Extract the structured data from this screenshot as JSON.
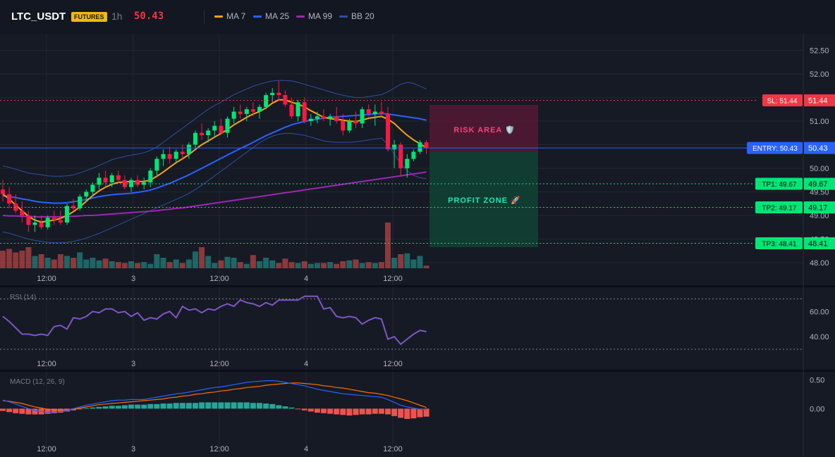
{
  "header": {
    "symbol": "LTC_USDT",
    "badge": "FUTURES",
    "timeframe": "1h",
    "price": "50.43",
    "legend": [
      {
        "label": "MA 7",
        "color": "#f7a21b"
      },
      {
        "label": "MA 25",
        "color": "#2962ff"
      },
      {
        "label": "MA 99",
        "color": "#9c27b0"
      },
      {
        "label": "BB 20",
        "color": "#2f4f9e"
      }
    ]
  },
  "colors": {
    "up": "#26a69a",
    "down": "#ef5350",
    "bull_candle": "#00e676",
    "bear_candle": "#ff1744",
    "ma7": "#f7a21b",
    "ma25": "#2962ff",
    "ma99": "#9c27b0",
    "bb": "#2f4f9e",
    "rsi": "#7e57c2",
    "macd": "#2962ff",
    "signal": "#ff6d00"
  },
  "time_axis": [
    "12:00",
    "3",
    "12:00",
    "4",
    "12:00"
  ],
  "price_axis": [
    "52.50",
    "52.00",
    "51.50",
    "51.00",
    "50.50",
    "50.00",
    "49.50",
    "49.00",
    "48.50",
    "48.00"
  ],
  "trade": {
    "sl": {
      "label": "SL: 51.44",
      "value": "51.44",
      "price": 51.44
    },
    "entry": {
      "label": "ENTRY: 50.43",
      "value": "50.43",
      "price": 50.43
    },
    "tp1": {
      "label": "TP1: 49.67",
      "value": "49.67",
      "price": 49.67
    },
    "tp2": {
      "label": "TP2: 49.17",
      "value": "49.17",
      "price": 49.17
    },
    "tp3": {
      "label": "TP3: 48.41",
      "value": "48.41",
      "price": 48.41
    },
    "risk_text": "RISK AREA 🛡️",
    "profit_text": "PROFIT ZONE 🚀"
  },
  "rsi": {
    "label": "RSI (14)",
    "axis": [
      "60.00",
      "40.00"
    ],
    "levels": [
      70,
      30
    ]
  },
  "macd": {
    "label": "MACD (12, 26, 9)",
    "axis": [
      "0.50",
      "0.00"
    ]
  },
  "chart_data": [
    {
      "type": "candlestick",
      "title": "LTC_USDT 1h",
      "ylim": [
        47.85,
        52.85
      ],
      "x_ticks": [
        "12:00",
        "3",
        "12:00",
        "4",
        "12:00"
      ],
      "ohlc": [
        [
          49.55,
          49.75,
          49.3,
          49.45
        ],
        [
          49.45,
          49.6,
          49.15,
          49.25
        ],
        [
          49.25,
          49.45,
          49.05,
          49.1
        ],
        [
          49.1,
          49.3,
          48.85,
          49.0
        ],
        [
          49.0,
          49.1,
          48.65,
          48.8
        ],
        [
          48.8,
          49.0,
          48.65,
          48.85
        ],
        [
          48.85,
          49.0,
          48.7,
          48.75
        ],
        [
          48.75,
          49.0,
          48.7,
          48.95
        ],
        [
          48.95,
          49.1,
          48.8,
          48.9
        ],
        [
          48.9,
          49.1,
          48.8,
          48.85
        ],
        [
          48.85,
          49.25,
          48.8,
          49.2
        ],
        [
          49.2,
          49.35,
          49.1,
          49.15
        ],
        [
          49.15,
          49.45,
          49.1,
          49.4
        ],
        [
          49.4,
          49.55,
          49.3,
          49.5
        ],
        [
          49.5,
          49.7,
          49.4,
          49.65
        ],
        [
          49.65,
          49.9,
          49.55,
          49.8
        ],
        [
          49.8,
          49.95,
          49.6,
          49.7
        ],
        [
          49.7,
          49.9,
          49.6,
          49.85
        ],
        [
          49.85,
          49.95,
          49.7,
          49.75
        ],
        [
          49.75,
          49.85,
          49.55,
          49.6
        ],
        [
          49.6,
          49.8,
          49.5,
          49.75
        ],
        [
          49.75,
          49.85,
          49.6,
          49.65
        ],
        [
          49.65,
          49.8,
          49.55,
          49.7
        ],
        [
          49.7,
          50.0,
          49.6,
          49.95
        ],
        [
          49.95,
          50.25,
          49.85,
          50.2
        ],
        [
          50.2,
          50.4,
          50.05,
          50.3
        ],
        [
          50.3,
          50.45,
          50.1,
          50.2
        ],
        [
          50.2,
          50.4,
          50.1,
          50.35
        ],
        [
          50.35,
          50.5,
          50.2,
          50.3
        ],
        [
          50.3,
          50.55,
          50.2,
          50.5
        ],
        [
          50.5,
          50.8,
          50.4,
          50.75
        ],
        [
          50.75,
          50.95,
          50.6,
          50.7
        ],
        [
          50.7,
          50.85,
          50.55,
          50.8
        ],
        [
          50.8,
          51.0,
          50.65,
          50.9
        ],
        [
          50.9,
          51.05,
          50.7,
          50.75
        ],
        [
          50.75,
          51.1,
          50.65,
          51.05
        ],
        [
          51.05,
          51.3,
          50.95,
          51.2
        ],
        [
          51.2,
          51.35,
          51.05,
          51.15
        ],
        [
          51.15,
          51.3,
          51.0,
          51.25
        ],
        [
          51.25,
          51.4,
          51.1,
          51.2
        ],
        [
          51.2,
          51.35,
          51.05,
          51.3
        ],
        [
          51.3,
          51.6,
          51.25,
          51.55
        ],
        [
          51.55,
          51.7,
          51.4,
          51.6
        ],
        [
          51.6,
          51.85,
          51.45,
          51.55
        ],
        [
          51.55,
          51.65,
          51.3,
          51.35
        ],
        [
          51.35,
          51.5,
          51.05,
          51.1
        ],
        [
          51.1,
          51.45,
          51.0,
          51.4
        ],
        [
          51.4,
          51.5,
          50.95,
          51.0
        ],
        [
          51.0,
          51.15,
          50.9,
          51.05
        ],
        [
          51.05,
          51.2,
          50.95,
          51.1
        ],
        [
          51.1,
          51.25,
          51.0,
          51.05
        ],
        [
          51.05,
          51.15,
          50.9,
          51.1
        ],
        [
          51.1,
          51.3,
          50.95,
          51.0
        ],
        [
          51.0,
          51.15,
          50.7,
          50.8
        ],
        [
          50.8,
          51.05,
          50.75,
          51.0
        ],
        [
          51.0,
          51.2,
          50.85,
          50.95
        ],
        [
          50.95,
          51.3,
          50.85,
          51.25
        ],
        [
          51.25,
          51.35,
          51.1,
          51.15
        ],
        [
          51.15,
          51.35,
          50.9,
          51.2
        ],
        [
          51.2,
          51.4,
          51.1,
          51.15
        ],
        [
          51.15,
          51.3,
          50.35,
          50.4
        ],
        [
          50.4,
          50.6,
          50.0,
          50.5
        ],
        [
          50.5,
          50.55,
          49.85,
          50.0
        ],
        [
          50.0,
          50.3,
          49.8,
          50.2
        ],
        [
          50.2,
          50.4,
          50.15,
          50.35
        ],
        [
          50.35,
          50.6,
          50.3,
          50.55
        ],
        [
          50.55,
          50.6,
          50.3,
          50.43
        ]
      ],
      "volume": [
        2.0,
        2.2,
        1.8,
        2.0,
        2.4,
        1.4,
        1.6,
        1.2,
        1.0,
        1.6,
        1.4,
        1.2,
        1.8,
        1.0,
        1.2,
        0.9,
        1.1,
        0.8,
        0.7,
        0.6,
        0.8,
        0.6,
        0.7,
        0.5,
        1.6,
        1.2,
        0.7,
        1.0,
        0.6,
        1.0,
        1.9,
        2.4,
        1.4,
        0.6,
        0.9,
        1.3,
        1.2,
        0.7,
        0.5,
        1.5,
        0.8,
        1.2,
        0.9,
        0.6,
        1.1,
        0.7,
        0.6,
        0.8,
        0.5,
        0.6,
        0.6,
        0.7,
        0.5,
        0.8,
        0.9,
        1.0,
        0.6,
        0.7,
        0.6,
        0.7,
        5.2,
        1.2,
        1.6,
        1.7,
        1.0,
        1.4,
        0.3
      ],
      "ma7": [
        49.45,
        49.35,
        49.22,
        49.1,
        48.98,
        48.9,
        48.86,
        48.88,
        48.9,
        48.94,
        49.0,
        49.08,
        49.18,
        49.3,
        49.42,
        49.52,
        49.6,
        49.66,
        49.7,
        49.71,
        49.72,
        49.72,
        49.72,
        49.75,
        49.83,
        49.92,
        50.02,
        50.12,
        50.2,
        50.29,
        50.4,
        50.5,
        50.58,
        50.66,
        50.74,
        50.82,
        50.92,
        51.0,
        51.08,
        51.15,
        51.2,
        51.28,
        51.38,
        51.45,
        51.45,
        51.4,
        51.36,
        51.3,
        51.22,
        51.15,
        51.08,
        51.05,
        51.04,
        51.02,
        51.0,
        50.99,
        51.02,
        51.06,
        51.08,
        51.1,
        51.04,
        50.95,
        50.82,
        50.7,
        50.6,
        50.52,
        50.43
      ],
      "ma25": [
        49.42,
        49.4,
        49.38,
        49.35,
        49.33,
        49.3,
        49.28,
        49.27,
        49.26,
        49.26,
        49.27,
        49.29,
        49.31,
        49.34,
        49.37,
        49.4,
        49.42,
        49.44,
        49.45,
        49.46,
        49.47,
        49.49,
        49.51,
        49.54,
        49.58,
        49.63,
        49.68,
        49.74,
        49.8,
        49.86,
        49.93,
        50.0,
        50.07,
        50.14,
        50.21,
        50.28,
        50.35,
        50.42,
        50.48,
        50.55,
        50.62,
        50.69,
        50.75,
        50.81,
        50.87,
        50.92,
        50.96,
        50.99,
        51.02,
        51.04,
        51.06,
        51.08,
        51.09,
        51.1,
        51.11,
        51.12,
        51.13,
        51.14,
        51.15,
        51.16,
        51.15,
        51.13,
        51.11,
        51.09,
        51.07,
        51.05,
        51.02
      ],
      "ma99": [
        49.0,
        48.99,
        48.99,
        48.98,
        48.98,
        48.97,
        48.97,
        48.97,
        48.97,
        48.97,
        48.98,
        48.98,
        48.99,
        49.0,
        49.0,
        49.01,
        49.02,
        49.03,
        49.04,
        49.05,
        49.06,
        49.07,
        49.08,
        49.09,
        49.1,
        49.12,
        49.13,
        49.15,
        49.16,
        49.18,
        49.2,
        49.22,
        49.24,
        49.26,
        49.28,
        49.3,
        49.32,
        49.34,
        49.36,
        49.38,
        49.4,
        49.42,
        49.44,
        49.46,
        49.48,
        49.5,
        49.52,
        49.54,
        49.56,
        49.58,
        49.6,
        49.62,
        49.64,
        49.66,
        49.68,
        49.7,
        49.72,
        49.74,
        49.76,
        49.78,
        49.8,
        49.82,
        49.84,
        49.86,
        49.88,
        49.9,
        49.92
      ],
      "bb_upper": [
        50.05,
        50.02,
        49.98,
        49.94,
        49.9,
        49.88,
        49.86,
        49.84,
        49.83,
        49.83,
        49.84,
        49.86,
        49.9,
        49.95,
        50.0,
        50.06,
        50.12,
        50.18,
        50.22,
        50.25,
        50.28,
        50.3,
        50.33,
        50.38,
        50.45,
        50.55,
        50.65,
        50.75,
        50.85,
        50.95,
        51.05,
        51.15,
        51.25,
        51.33,
        51.4,
        51.48,
        51.56,
        51.62,
        51.68,
        51.74,
        51.78,
        51.82,
        51.85,
        51.86,
        51.86,
        51.85,
        51.82,
        51.78,
        51.74,
        51.7,
        51.66,
        51.62,
        51.58,
        51.55,
        51.52,
        51.5,
        51.5,
        51.52,
        51.54,
        51.56,
        51.62,
        51.7,
        51.78,
        51.82,
        51.8,
        51.74,
        51.68
      ],
      "bb_lower": [
        48.65,
        48.62,
        48.58,
        48.54,
        48.5,
        48.47,
        48.45,
        48.43,
        48.42,
        48.42,
        48.43,
        48.45,
        48.48,
        48.52,
        48.57,
        48.62,
        48.68,
        48.74,
        48.8,
        48.86,
        48.92,
        48.98,
        49.04,
        49.1,
        49.16,
        49.22,
        49.28,
        49.34,
        49.4,
        49.47,
        49.55,
        49.64,
        49.74,
        49.84,
        49.94,
        50.04,
        50.14,
        50.24,
        50.34,
        50.44,
        50.54,
        50.62,
        50.68,
        50.72,
        50.74,
        50.74,
        50.72,
        50.7,
        50.66,
        50.62,
        50.58,
        50.56,
        50.55,
        50.55,
        50.55,
        50.56,
        50.58,
        50.6,
        50.62,
        50.64,
        50.5,
        50.3,
        50.1,
        49.95,
        49.85,
        49.8,
        49.78
      ]
    },
    {
      "type": "line",
      "title": "RSI (14)",
      "ylim": [
        25,
        78
      ],
      "y_ticks": [
        60,
        40
      ],
      "values": [
        56,
        52,
        47,
        42,
        42,
        41,
        42,
        41,
        48,
        49,
        46,
        55,
        54,
        56,
        60,
        59,
        62,
        62,
        59,
        60,
        56,
        59,
        53,
        55,
        54,
        58,
        60,
        55,
        64,
        61,
        62,
        59,
        62,
        61,
        64,
        66,
        64,
        69,
        67,
        66,
        64,
        67,
        65,
        69,
        69,
        69,
        69,
        72,
        72,
        72,
        62,
        63,
        56,
        55,
        56,
        55,
        50,
        53,
        55,
        54,
        38,
        40,
        34,
        38,
        42,
        45,
        44
      ]
    },
    {
      "type": "bar",
      "title": "MACD (12, 26, 9)",
      "ylim": [
        -0.55,
        0.62
      ],
      "y_ticks": [
        0.5,
        0.0
      ],
      "histogram": [
        -0.04,
        -0.06,
        -0.08,
        -0.09,
        -0.1,
        -0.1,
        -0.1,
        -0.09,
        -0.08,
        -0.07,
        -0.05,
        -0.03,
        -0.01,
        0.01,
        0.02,
        0.03,
        0.04,
        0.05,
        0.05,
        0.06,
        0.07,
        0.07,
        0.07,
        0.08,
        0.08,
        0.09,
        0.09,
        0.1,
        0.1,
        0.1,
        0.1,
        0.11,
        0.11,
        0.11,
        0.11,
        0.11,
        0.11,
        0.11,
        0.11,
        0.1,
        0.1,
        0.09,
        0.08,
        0.06,
        0.04,
        0.02,
        -0.01,
        -0.03,
        -0.05,
        -0.07,
        -0.08,
        -0.09,
        -0.1,
        -0.11,
        -0.12,
        -0.11,
        -0.1,
        -0.1,
        -0.09,
        -0.09,
        -0.1,
        -0.13,
        -0.16,
        -0.18,
        -0.17,
        -0.15,
        -0.14
      ],
      "macd_line": [
        0.15,
        0.12,
        0.08,
        0.04,
        0.0,
        -0.03,
        -0.05,
        -0.06,
        -0.06,
        -0.05,
        -0.03,
        0.0,
        0.03,
        0.06,
        0.08,
        0.1,
        0.12,
        0.14,
        0.15,
        0.15,
        0.16,
        0.16,
        0.16,
        0.18,
        0.2,
        0.22,
        0.24,
        0.26,
        0.27,
        0.29,
        0.31,
        0.33,
        0.35,
        0.37,
        0.38,
        0.4,
        0.42,
        0.44,
        0.46,
        0.47,
        0.48,
        0.49,
        0.49,
        0.48,
        0.46,
        0.44,
        0.42,
        0.4,
        0.37,
        0.34,
        0.32,
        0.3,
        0.28,
        0.26,
        0.25,
        0.24,
        0.23,
        0.22,
        0.21,
        0.2,
        0.16,
        0.11,
        0.06,
        0.03,
        0.01,
        -0.01,
        -0.02
      ],
      "signal_line": [
        0.14,
        0.13,
        0.11,
        0.09,
        0.06,
        0.03,
        0.01,
        -0.01,
        -0.02,
        -0.02,
        -0.02,
        -0.01,
        0.01,
        0.03,
        0.05,
        0.07,
        0.08,
        0.09,
        0.1,
        0.11,
        0.12,
        0.13,
        0.14,
        0.15,
        0.16,
        0.17,
        0.19,
        0.2,
        0.22,
        0.23,
        0.25,
        0.26,
        0.28,
        0.29,
        0.31,
        0.32,
        0.34,
        0.35,
        0.37,
        0.38,
        0.39,
        0.41,
        0.42,
        0.43,
        0.44,
        0.45,
        0.45,
        0.44,
        0.43,
        0.42,
        0.4,
        0.39,
        0.37,
        0.36,
        0.34,
        0.32,
        0.3,
        0.28,
        0.27,
        0.25,
        0.23,
        0.2,
        0.17,
        0.14,
        0.1,
        0.06,
        0.02
      ]
    }
  ]
}
